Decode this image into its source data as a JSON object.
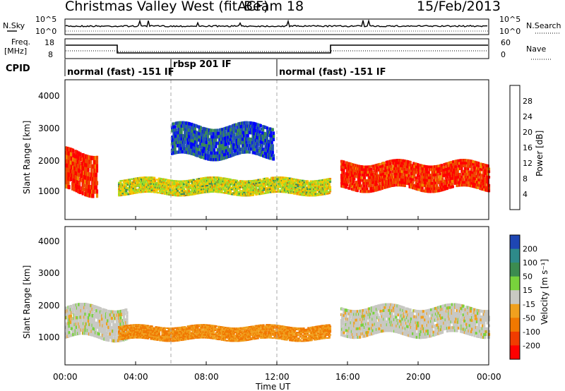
{
  "header": {
    "title": "Christmas Valley West (fitACF)",
    "beam": "Beam 18",
    "date": "15/Feb/2013"
  },
  "noise_panel": {
    "left_label": "N.Sky",
    "right_label": "N.Search",
    "left_ticks": [
      "10^5",
      "10^0"
    ],
    "right_ticks": [
      "10^5",
      "10^0"
    ]
  },
  "freq_panel": {
    "left_label_line1": "Freq.",
    "left_label_line2": "[MHz]",
    "right_label": "Nave",
    "left_ticks": [
      "18",
      "8"
    ],
    "right_ticks": [
      "60",
      "0"
    ]
  },
  "cpid_panel": {
    "label": "CPID",
    "segments": [
      {
        "text": "normal (fast) -151 IF",
        "start_hour": 0,
        "end_hour": 6
      },
      {
        "text": "rbsp 201 IF",
        "start_hour": 6,
        "end_hour": 12
      },
      {
        "text": "normal (fast) -151 IF",
        "start_hour": 12,
        "end_hour": 24
      }
    ]
  },
  "chart_data": [
    {
      "type": "heatmap",
      "name": "power",
      "ylabel": "Slant Range [km]",
      "yticks": [
        1000,
        2000,
        3000,
        4000
      ],
      "ylim": [
        180,
        4500
      ],
      "colorbar": {
        "label": "Power [dB]",
        "ticks": [
          "4",
          "8",
          "12",
          "16",
          "20",
          "24",
          "28"
        ],
        "colors": [
          "#0000ff",
          "#2455b4",
          "#3a8a55",
          "#96dc2d",
          "#f5c800",
          "#f08c00",
          "#f04600",
          "#ff0000"
        ]
      },
      "features": [
        {
          "feature": "mid-latitude scatter band",
          "time_hours": [
            3.0,
            15.0
          ],
          "range_km": [
            950,
            1450
          ],
          "power_db": 16
        },
        {
          "feature": "post-16 UT strong band",
          "time_hours": [
            15.6,
            24.0
          ],
          "range_km": [
            1100,
            1950
          ],
          "power_db": 28
        },
        {
          "feature": "pre-dawn echoes",
          "time_hours": [
            0.0,
            1.8
          ],
          "range_km": [
            1000,
            2300
          ],
          "power_db": 28
        },
        {
          "feature": "far-range arc",
          "time_hours": [
            6.0,
            11.8
          ],
          "range_km": [
            2100,
            3100
          ],
          "power_db": 6
        }
      ]
    },
    {
      "type": "heatmap",
      "name": "velocity",
      "ylabel": "Slant Range [km]",
      "yticks": [
        1000,
        2000,
        3000,
        4000
      ],
      "ylim": [
        180,
        4500
      ],
      "colorbar": {
        "label": "Velocity [m s⁻¹]",
        "ticks": [
          "200",
          "100",
          "50",
          "15",
          "-15",
          "-50",
          "-100",
          "-200"
        ],
        "colors": [
          "#1e46b4",
          "#2e8a8a",
          "#3c8c50",
          "#78d23c",
          "#c8c8c3",
          "#f0a01e",
          "#f07800",
          "#f03c00",
          "#ff0000"
        ]
      },
      "features": [
        {
          "feature": "ground scatter",
          "time_hours": [
            0.0,
            3.5
          ],
          "range_km": [
            1000,
            2000
          ],
          "velocity": 0
        },
        {
          "feature": "negative velocity band",
          "time_hours": [
            3.0,
            15.0
          ],
          "range_km": [
            950,
            1400
          ],
          "velocity": -50
        },
        {
          "feature": "ground scatter",
          "time_hours": [
            15.6,
            24.0
          ],
          "range_km": [
            1100,
            2000
          ],
          "velocity": 0
        }
      ]
    }
  ],
  "xaxis": {
    "ticks": [
      "00:00",
      "04:00",
      "08:00",
      "12:00",
      "16:00",
      "20:00",
      "00:00"
    ],
    "label": "Time UT"
  }
}
